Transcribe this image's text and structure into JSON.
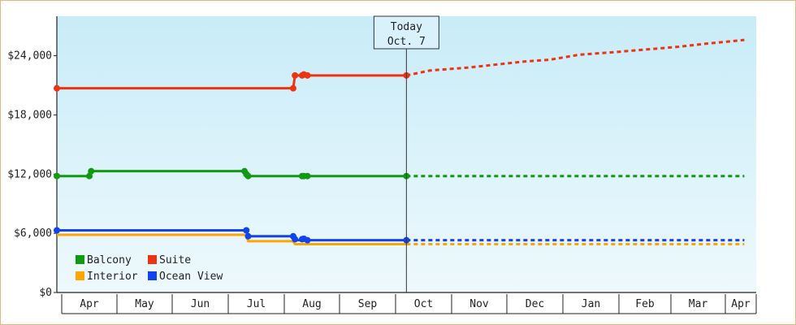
{
  "chart_data": {
    "type": "line",
    "title": "",
    "xlabel": "",
    "ylabel": "",
    "x_ticks": [
      "Apr",
      "May",
      "Jun",
      "Jul",
      "Aug",
      "Sep",
      "Oct",
      "Nov",
      "Dec",
      "Jan",
      "Feb",
      "Mar",
      "Apr"
    ],
    "y_ticks": [
      "$0",
      "$6,000",
      "$12,000",
      "$18,000",
      "$24,000"
    ],
    "ylim": [
      0,
      28000
    ],
    "grid": false,
    "legend_position": "bottom-left",
    "today_marker": {
      "line1": "Today",
      "line2": "Oct. 7",
      "date": "Oct 7"
    },
    "series": [
      {
        "name": "Balcony",
        "color": "#119911",
        "history": [
          [
            "Mar 25",
            11800
          ],
          [
            "Apr 16",
            11800
          ],
          [
            "Apr 16",
            12300
          ],
          [
            "Jul 11",
            12300
          ],
          [
            "Jul 11",
            11800
          ],
          [
            "Aug 11",
            11800
          ],
          [
            "Aug 12",
            11800
          ],
          [
            "Oct 7",
            11800
          ]
        ],
        "points": [
          [
            "Mar 25",
            11800
          ],
          [
            "Apr 16",
            11800
          ],
          [
            "Apr 17",
            12300
          ],
          [
            "Jul 10",
            12300
          ],
          [
            "Jul 11",
            12000
          ],
          [
            "Jul 12",
            11800
          ],
          [
            "Aug 11",
            11800
          ],
          [
            "Aug 12",
            11800
          ],
          [
            "Aug 14",
            11800
          ],
          [
            "Oct 7",
            11800
          ]
        ],
        "forecast": [
          [
            "Oct 7",
            11800
          ],
          [
            "Apr 10",
            11800
          ]
        ]
      },
      {
        "name": "Suite",
        "color": "#ee3311",
        "history": [
          [
            "Mar 25",
            20700
          ],
          [
            "Aug 6",
            20700
          ],
          [
            "Aug 7",
            22000
          ],
          [
            "Oct 7",
            22000
          ]
        ],
        "points": [
          [
            "Mar 25",
            20700
          ],
          [
            "Aug 6",
            20700
          ],
          [
            "Aug 7",
            22000
          ],
          [
            "Aug 11",
            22000
          ],
          [
            "Aug 12",
            22100
          ],
          [
            "Aug 14",
            22000
          ],
          [
            "Oct 7",
            22000
          ]
        ],
        "forecast": [
          [
            "Oct 7",
            22000
          ],
          [
            "Oct 20",
            22500
          ],
          [
            "Nov 10",
            22800
          ],
          [
            "Nov 20",
            23000
          ],
          [
            "Dec 10",
            23400
          ],
          [
            "Dec 25",
            23600
          ],
          [
            "Jan 10",
            24100
          ],
          [
            "Feb 1",
            24400
          ],
          [
            "Feb 20",
            24700
          ],
          [
            "Mar 5",
            24900
          ],
          [
            "Mar 20",
            25200
          ],
          [
            "Apr 10",
            25600
          ]
        ]
      },
      {
        "name": "Interior",
        "color": "#ffa500",
        "history": [
          [
            "Mar 25",
            5850
          ],
          [
            "Jul 11",
            5850
          ],
          [
            "Jul 12",
            5200
          ],
          [
            "Aug 6",
            5200
          ],
          [
            "Aug 7",
            4900
          ],
          [
            "Oct 7",
            4900
          ]
        ],
        "points": [],
        "forecast": [
          [
            "Oct 7",
            4900
          ],
          [
            "Apr 10",
            4900
          ]
        ]
      },
      {
        "name": "Ocean View",
        "color": "#1144ee",
        "history": [
          [
            "Mar 25",
            6300
          ],
          [
            "Jul 11",
            6300
          ],
          [
            "Jul 12",
            5700
          ],
          [
            "Aug 6",
            5700
          ],
          [
            "Aug 7",
            5300
          ],
          [
            "Oct 7",
            5300
          ]
        ],
        "points": [
          [
            "Mar 25",
            6300
          ],
          [
            "Jul 11",
            6300
          ],
          [
            "Jul 12",
            5700
          ],
          [
            "Aug 6",
            5700
          ],
          [
            "Aug 7",
            5400
          ],
          [
            "Aug 11",
            5400
          ],
          [
            "Aug 12",
            5450
          ],
          [
            "Aug 14",
            5300
          ],
          [
            "Oct 7",
            5300
          ]
        ],
        "forecast": [
          [
            "Oct 7",
            5300
          ],
          [
            "Apr 10",
            5300
          ]
        ]
      }
    ],
    "legend": [
      "Balcony",
      "Suite",
      "Interior",
      "Ocean View"
    ]
  }
}
